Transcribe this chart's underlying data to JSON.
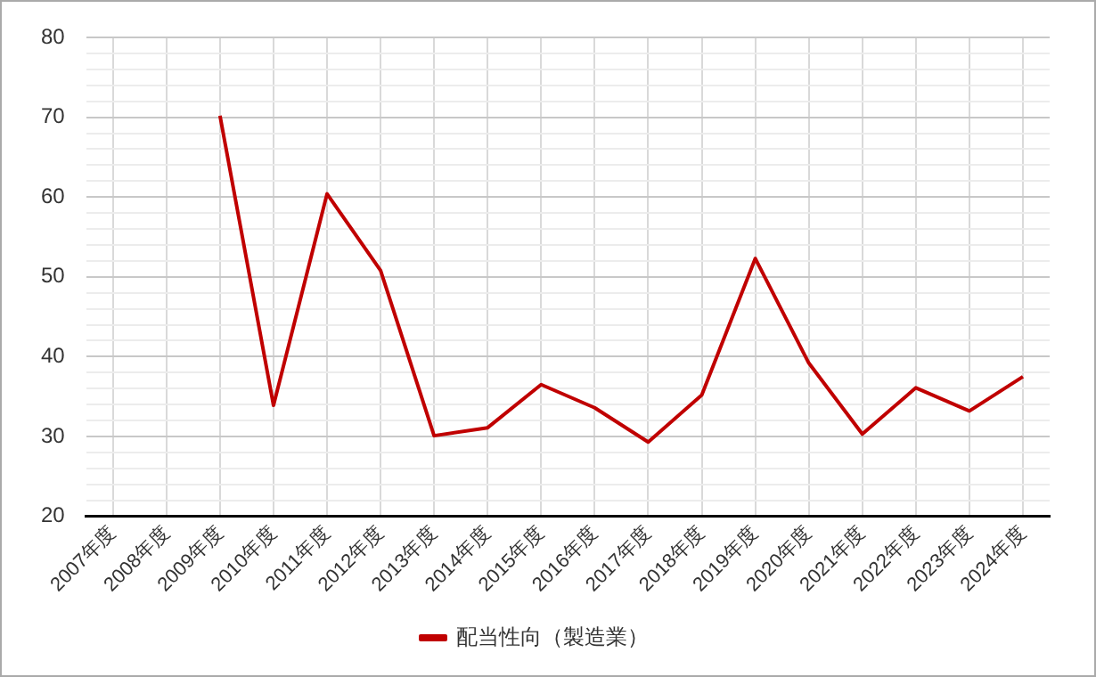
{
  "chart_data": {
    "type": "line",
    "categories": [
      "2007年度",
      "2008年度",
      "2009年度",
      "2010年度",
      "2011年度",
      "2012年度",
      "2013年度",
      "2014年度",
      "2015年度",
      "2016年度",
      "2017年度",
      "2018年度",
      "2019年度",
      "2020年度",
      "2021年度",
      "2022年度",
      "2023年度",
      "2024年度"
    ],
    "series": [
      {
        "name": "配当性向（製造業）",
        "color": "#c00000",
        "values": [
          null,
          null,
          70.2,
          33.9,
          60.4,
          50.8,
          30.1,
          31.1,
          36.5,
          33.6,
          29.3,
          35.2,
          52.3,
          39.2,
          30.3,
          36.1,
          33.2,
          37.5
        ]
      }
    ],
    "ylim": [
      20,
      80
    ],
    "yticks": [
      20,
      {
        "value": 22,
        "label": null
      },
      {
        "value": 24,
        "label": null
      },
      {
        "value": 26,
        "label": null
      },
      {
        "value": 28,
        "label": null
      },
      30,
      {
        "value": 32,
        "label": null
      },
      {
        "value": 34,
        "label": null
      },
      {
        "value": 36,
        "label": null
      },
      {
        "value": 38,
        "label": null
      },
      40,
      {
        "value": 42,
        "label": null
      },
      {
        "value": 44,
        "label": null
      },
      {
        "value": 46,
        "label": null
      },
      {
        "value": 48,
        "label": null
      },
      50,
      {
        "value": 52,
        "label": null
      },
      {
        "value": 54,
        "label": null
      },
      {
        "value": 56,
        "label": null
      },
      {
        "value": 58,
        "label": null
      },
      60,
      {
        "value": 62,
        "label": null
      },
      {
        "value": 64,
        "label": null
      },
      {
        "value": 66,
        "label": null
      },
      {
        "value": 68,
        "label": null
      },
      70,
      {
        "value": 72,
        "label": null
      },
      {
        "value": 74,
        "label": null
      },
      {
        "value": 76,
        "label": null
      },
      {
        "value": 78,
        "label": null
      },
      80
    ],
    "grid": true,
    "legend": "bottom",
    "marker": "none",
    "line_style": "solid"
  }
}
